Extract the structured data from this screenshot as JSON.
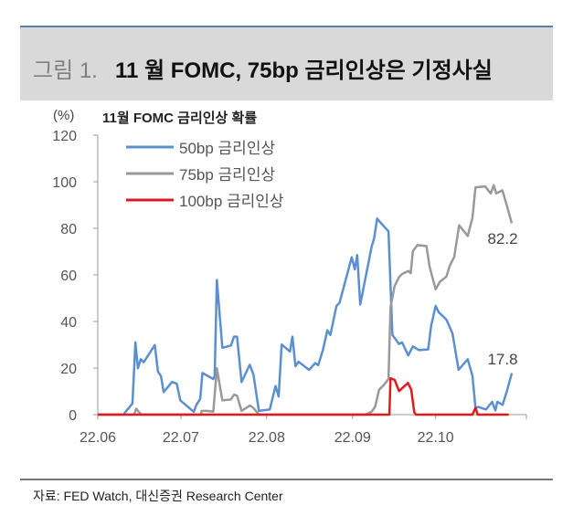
{
  "header": {
    "label": "그림 1.",
    "title": "11 월 FOMC, 75bp 금리인상은 기정사실"
  },
  "source": "자료: FED Watch, 대신증권 Research Center",
  "chart_data": {
    "type": "line",
    "title": "11월 FOMC 금리인상 확률",
    "ylabel": "(%)",
    "xlabel": "",
    "x_units": "days since 2022-06-01",
    "ylim": [
      0,
      120
    ],
    "yticks": [
      0,
      20,
      40,
      60,
      80,
      100,
      120
    ],
    "xlim": [
      0,
      155
    ],
    "xticks": [
      {
        "x": 0,
        "label": "22.06"
      },
      {
        "x": 30,
        "label": "22.07"
      },
      {
        "x": 61,
        "label": "22.08"
      },
      {
        "x": 92,
        "label": "22.09"
      },
      {
        "x": 122,
        "label": "22.10"
      }
    ],
    "legend_position": "top-left",
    "annotations": [
      {
        "series": "75bp 금리인상",
        "text": "82.2"
      },
      {
        "series": "50bp 금리인상",
        "text": "17.8"
      }
    ],
    "series": [
      {
        "name": "50bp 금리인상",
        "color": "#5b8fd0",
        "points": [
          [
            0,
            0
          ],
          [
            9.2,
            0
          ],
          [
            12.5,
            4.8
          ],
          [
            13.6,
            31
          ],
          [
            14.5,
            19.9
          ],
          [
            15.5,
            23.8
          ],
          [
            16.6,
            22.5
          ],
          [
            20.6,
            29.9
          ],
          [
            21.7,
            18.5
          ],
          [
            22.8,
            16.6
          ],
          [
            23.8,
            9.7
          ],
          [
            26.8,
            14
          ],
          [
            28.5,
            13.3
          ],
          [
            29.8,
            6.1
          ],
          [
            34.7,
            1.2
          ],
          [
            35.6,
            4.2
          ],
          [
            37,
            6.8
          ],
          [
            37.8,
            17.9
          ],
          [
            41.7,
            15.3
          ],
          [
            42.2,
            16.6
          ],
          [
            43,
            57.8
          ],
          [
            45,
            28.7
          ],
          [
            48.1,
            29.7
          ],
          [
            49.2,
            33.5
          ],
          [
            50.3,
            33.5
          ],
          [
            51.9,
            14
          ],
          [
            54.9,
            21.4
          ],
          [
            56.2,
            17.3
          ],
          [
            58.2,
            1.6
          ],
          [
            62.1,
            2.2
          ],
          [
            64.2,
            12.3
          ],
          [
            65.3,
            7.8
          ],
          [
            66.4,
            30.1
          ],
          [
            69.4,
            27.1
          ],
          [
            70.3,
            33.5
          ],
          [
            71.4,
            20.8
          ],
          [
            72.5,
            22.7
          ],
          [
            76.3,
            19.2
          ],
          [
            78.5,
            22.1
          ],
          [
            79.6,
            21.2
          ],
          [
            81.3,
            27.7
          ],
          [
            82.9,
            36.2
          ],
          [
            84,
            34.2
          ],
          [
            86.2,
            46.7
          ],
          [
            87.3,
            48
          ],
          [
            91.7,
            67.6
          ],
          [
            92.8,
            62.4
          ],
          [
            93.7,
            68.5
          ],
          [
            94.8,
            47.3
          ],
          [
            98.9,
            72.2
          ],
          [
            99.8,
            75.7
          ],
          [
            100.9,
            84.2
          ],
          [
            102,
            82.6
          ],
          [
            105,
            78.7
          ],
          [
            106.4,
            34.2
          ],
          [
            108.8,
            30.3
          ],
          [
            109.9,
            31
          ],
          [
            112.1,
            25.4
          ],
          [
            113.8,
            29.3
          ],
          [
            116,
            27.7
          ],
          [
            119.3,
            28
          ],
          [
            120.4,
            38.2
          ],
          [
            122,
            46.7
          ],
          [
            123.1,
            44
          ],
          [
            125.9,
            40.8
          ],
          [
            128.1,
            34.9
          ],
          [
            130.3,
            19.2
          ],
          [
            133.6,
            23.8
          ],
          [
            135.3,
            16.6
          ],
          [
            136.4,
            2.9
          ],
          [
            137.5,
            3.3
          ],
          [
            140.2,
            2.2
          ],
          [
            142.4,
            5.5
          ],
          [
            143.6,
            1.8
          ],
          [
            144.3,
            5.5
          ],
          [
            146.2,
            4.2
          ],
          [
            147.9,
            10.7
          ],
          [
            149.5,
            17.8
          ]
        ]
      },
      {
        "name": "75bp 금리인상",
        "color": "#999999",
        "points": [
          [
            0,
            0
          ],
          [
            13.1,
            0
          ],
          [
            13.9,
            2.6
          ],
          [
            15,
            0.9
          ],
          [
            15.8,
            0
          ],
          [
            37.3,
            0
          ],
          [
            37.5,
            1.6
          ],
          [
            39.5,
            1.6
          ],
          [
            41.7,
            1.3
          ],
          [
            43,
            19.9
          ],
          [
            45,
            6.1
          ],
          [
            48.1,
            6.5
          ],
          [
            49.2,
            8.6
          ],
          [
            50.3,
            8.1
          ],
          [
            51.9,
            1.6
          ],
          [
            54.9,
            3.9
          ],
          [
            56.2,
            2.9
          ],
          [
            58.2,
            0
          ],
          [
            96.7,
            0
          ],
          [
            98.9,
            1.3
          ],
          [
            100.2,
            3.5
          ],
          [
            101.6,
            10.7
          ],
          [
            103.3,
            12.7
          ],
          [
            105,
            15.3
          ],
          [
            105.7,
            46
          ],
          [
            107.2,
            55.2
          ],
          [
            108.8,
            59.1
          ],
          [
            109.9,
            60.4
          ],
          [
            112.1,
            61.7
          ],
          [
            113,
            60.7
          ],
          [
            113.8,
            70.2
          ],
          [
            115.4,
            72.8
          ],
          [
            118.7,
            72.4
          ],
          [
            119.8,
            63.6
          ],
          [
            122,
            53.8
          ],
          [
            123.6,
            57.1
          ],
          [
            125.9,
            59.3
          ],
          [
            127,
            63.6
          ],
          [
            128.1,
            66.3
          ],
          [
            128.7,
            67.6
          ],
          [
            130.5,
            81.3
          ],
          [
            133.6,
            76.7
          ],
          [
            135.3,
            84.6
          ],
          [
            136.4,
            97.6
          ],
          [
            139.9,
            98
          ],
          [
            141.9,
            95
          ],
          [
            143,
            98.5
          ],
          [
            143.9,
            95
          ],
          [
            146.1,
            96.3
          ],
          [
            147.9,
            89.1
          ],
          [
            149.5,
            82.2
          ]
        ]
      },
      {
        "name": "100bp 금리인상",
        "color": "#e0191e",
        "points": [
          [
            0,
            0
          ],
          [
            105.3,
            0
          ],
          [
            105.7,
            15.6
          ],
          [
            107.2,
            14.9
          ],
          [
            108.8,
            10.1
          ],
          [
            112,
            13.6
          ],
          [
            113.2,
            10.7
          ],
          [
            114.3,
            1
          ],
          [
            114.9,
            0
          ],
          [
            135.3,
            0
          ],
          [
            136.4,
            2.9
          ],
          [
            137.2,
            0
          ],
          [
            148.4,
            0
          ]
        ]
      }
    ]
  }
}
